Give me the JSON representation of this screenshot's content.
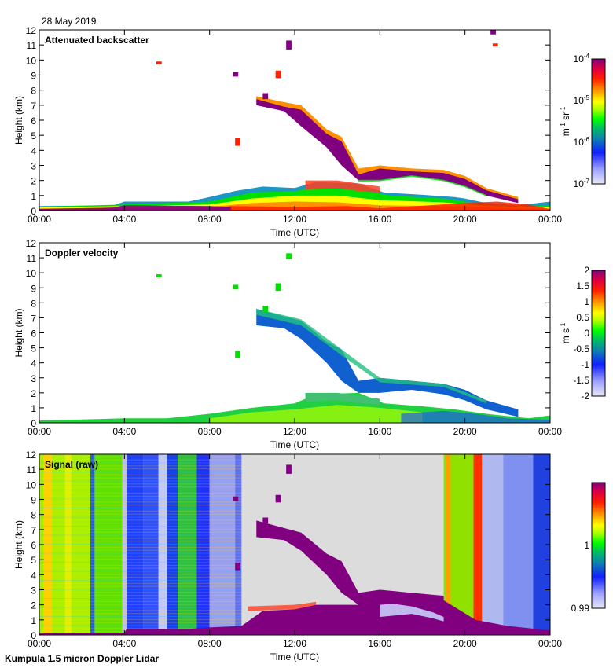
{
  "header": {
    "date": "28 May 2019"
  },
  "footer": {
    "instrument": "Kumpula 1.5 micron Doppler Lidar"
  },
  "colors": {
    "purple": "#800080",
    "red": "#ff2000",
    "orange": "#ff9000",
    "yellow": "#ffff00",
    "green": "#00e000",
    "teal": "#00a0a0",
    "blue": "#1030ff",
    "lightblue": "#9090ff",
    "grey": "#dcdcdc"
  },
  "chart_data": [
    {
      "type": "heatmap",
      "title": "Attenuated backscatter",
      "xlabel": "Time (UTC)",
      "ylabel": "Height (km)",
      "x_ticks": [
        "00:00",
        "04:00",
        "08:00",
        "12:00",
        "16:00",
        "20:00",
        "00:00"
      ],
      "y_ticks": [
        "0",
        "1",
        "2",
        "3",
        "4",
        "5",
        "6",
        "7",
        "8",
        "9",
        "10",
        "11",
        "12"
      ],
      "ylim": [
        0,
        12
      ],
      "colorbar": {
        "label": "m-1 sr-1",
        "label_parts": [
          "m",
          "-1",
          " sr",
          "-1"
        ],
        "ticks": [
          "10-7",
          "10-6",
          "10-5",
          "10-4"
        ],
        "tick_parts": [
          [
            "10",
            "-7"
          ],
          [
            "10",
            "-6"
          ],
          [
            "10",
            "-5"
          ],
          [
            "10",
            "-4"
          ]
        ],
        "scale": "log",
        "range": [
          1e-07,
          0.0001
        ]
      }
    },
    {
      "type": "heatmap",
      "title": "Doppler velocity",
      "xlabel": "Time (UTC)",
      "ylabel": "Height (km)",
      "x_ticks": [
        "00:00",
        "04:00",
        "08:00",
        "12:00",
        "16:00",
        "20:00",
        "00:00"
      ],
      "y_ticks": [
        "0",
        "1",
        "2",
        "3",
        "4",
        "5",
        "6",
        "7",
        "8",
        "9",
        "10",
        "11",
        "12"
      ],
      "ylim": [
        0,
        12
      ],
      "colorbar": {
        "label": "m s-1",
        "label_parts": [
          "m s",
          "-1"
        ],
        "ticks": [
          "-2",
          "-1.5",
          "-1",
          "-0.5",
          "0",
          "0.5",
          "1",
          "1.5",
          "2"
        ],
        "scale": "linear",
        "range": [
          -2,
          2
        ]
      }
    },
    {
      "type": "heatmap",
      "title": "Signal (raw)",
      "xlabel": "Time (UTC)",
      "ylabel": "Height (km)",
      "x_ticks": [
        "00:00",
        "04:00",
        "08:00",
        "12:00",
        "16:00",
        "20:00",
        "00:00"
      ],
      "y_ticks": [
        "0",
        "1",
        "2",
        "3",
        "4",
        "5",
        "6",
        "7",
        "8",
        "9",
        "10",
        "11",
        "12"
      ],
      "ylim": [
        0,
        12
      ],
      "colorbar": {
        "label": "",
        "ticks": [
          "0.99",
          "1"
        ],
        "scale": "linear",
        "range": [
          0.99,
          1.01
        ]
      }
    }
  ]
}
